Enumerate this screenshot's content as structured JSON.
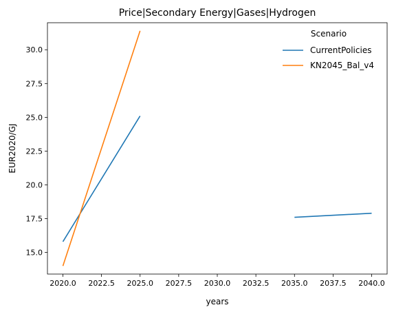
{
  "chart_data": {
    "type": "line",
    "title": "Price|Secondary Energy|Gases|Hydrogen",
    "xlabel": "years",
    "ylabel": "EUR2020/GJ",
    "xlim": [
      2019.0,
      2041.0
    ],
    "ylim": [
      13.4,
      32.0
    ],
    "xticks": [
      2020.0,
      2022.5,
      2025.0,
      2027.5,
      2030.0,
      2032.5,
      2035.0,
      2037.5,
      2040.0
    ],
    "xtick_labels": [
      "2020.0",
      "2022.5",
      "2025.0",
      "2027.5",
      "2030.0",
      "2032.5",
      "2035.0",
      "2037.5",
      "2040.0"
    ],
    "yticks": [
      15.0,
      17.5,
      20.0,
      22.5,
      25.0,
      27.5,
      30.0
    ],
    "ytick_labels": [
      "15.0",
      "17.5",
      "20.0",
      "22.5",
      "25.0",
      "27.5",
      "30.0"
    ],
    "grid": false,
    "legend": {
      "title": "Scenario",
      "placement": "top-right"
    },
    "series": [
      {
        "name": "CurrentPolicies",
        "color": "#1f77b4",
        "segments": [
          [
            [
              2020,
              15.8
            ],
            [
              2025,
              25.1
            ]
          ],
          [
            [
              2035,
              17.6
            ],
            [
              2040,
              17.9
            ]
          ]
        ]
      },
      {
        "name": "KN2045_Bal_v4",
        "color": "#ff7f0e",
        "segments": [
          [
            [
              2020,
              14.0
            ],
            [
              2025,
              31.4
            ]
          ]
        ]
      }
    ]
  }
}
